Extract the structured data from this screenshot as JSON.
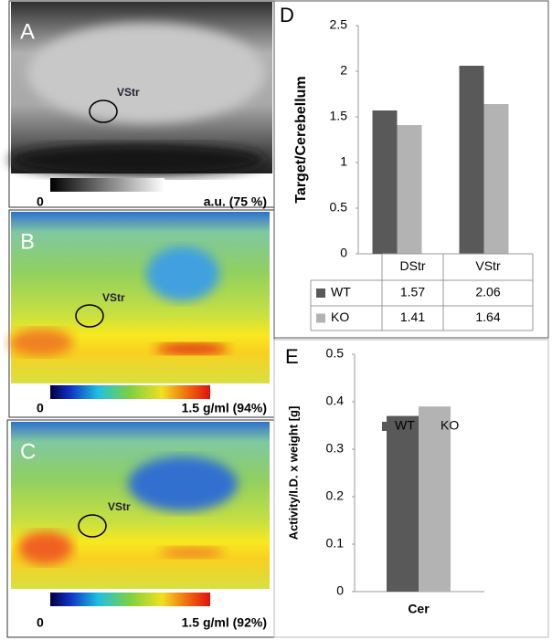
{
  "panels": [
    {
      "label": "A",
      "roi": "VStr",
      "scale_min": 0,
      "scale_max": "a.u. (75 %)"
    },
    {
      "label": "B",
      "roi": "VStr",
      "scale_min": 0,
      "scale_max": "1.5 g/ml (94%)"
    },
    {
      "label": "C",
      "roi": "VStr",
      "scale_min": 0,
      "scale_max": "1.5 g/ml (92%)"
    }
  ],
  "chart_data": [
    {
      "type": "bar",
      "label": "D",
      "ylabel": "Target/Cerebellum",
      "categories": [
        "DStr",
        "VStr"
      ],
      "series": [
        {
          "name": "WT",
          "color": "#595959",
          "values": [
            1.57,
            2.06
          ]
        },
        {
          "name": "KO",
          "color": "#b3b3b3",
          "values": [
            1.41,
            1.64
          ]
        }
      ],
      "ylim": [
        0,
        2.5
      ],
      "yticks": [
        0,
        0.5,
        1,
        1.5,
        2,
        2.5
      ],
      "data_table": true
    },
    {
      "type": "bar",
      "label": "E",
      "ylabel": "Activity/I.D. x weight [g]",
      "categories": [
        "Cer"
      ],
      "series": [
        {
          "name": "WT",
          "color": "#595959",
          "values": [
            0.37
          ]
        },
        {
          "name": "KO",
          "color": "#b3b3b3",
          "values": [
            0.39
          ]
        }
      ],
      "ylim": [
        0,
        0.5
      ],
      "yticks": [
        0,
        0.1,
        0.2,
        0.3,
        0.4,
        0.5
      ],
      "legend": "top"
    }
  ]
}
